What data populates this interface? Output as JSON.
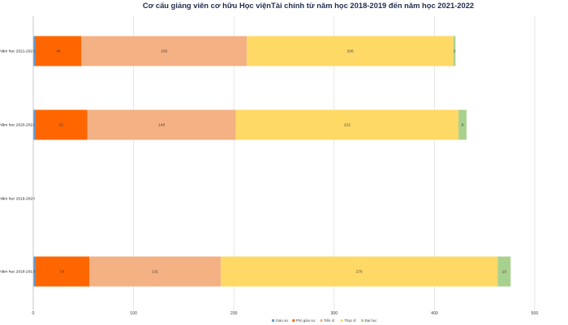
{
  "chart_data": {
    "type": "bar",
    "orientation": "horizontal",
    "stacked": true,
    "title": "Cơ cấu giảng viên cơ hữu Học việnTài chính  từ năm học 2018-2019 đến năm học 2021-2022",
    "categories": [
      "Năm học 2021-2022",
      "Năm học 2020-2021",
      "Năm học 2019-2020",
      "Năm học 2018-2019"
    ],
    "series": [
      {
        "name": "Giáo sư",
        "color": "#5b9bd5",
        "values": [
          2,
          2,
          0,
          2
        ]
      },
      {
        "name": "Phó giáo sư",
        "color": "#ff6600",
        "values": [
          46,
          52,
          0,
          54
        ]
      },
      {
        "name": "Tiến sĩ",
        "color": "#f4b183",
        "values": [
          165,
          148,
          0,
          131
        ]
      },
      {
        "name": "Thạc sĩ",
        "color": "#ffd966",
        "values": [
          206,
          222,
          0,
          276
        ]
      },
      {
        "name": "Đại học",
        "color": "#a9d18e",
        "values": [
          2,
          8,
          0,
          13
        ]
      }
    ],
    "data_labels": [
      [
        "",
        "46",
        "165",
        "206",
        "2"
      ],
      [
        "",
        "52",
        "148",
        "222",
        "8"
      ],
      [
        "",
        "",
        "",
        "",
        ""
      ],
      [
        "",
        "54",
        "131",
        "276",
        "13"
      ]
    ],
    "xlim": [
      0,
      500
    ],
    "xticks": [
      "0",
      "100",
      "200",
      "300",
      "400",
      "500"
    ],
    "grid": true,
    "legend_position": "bottom"
  }
}
